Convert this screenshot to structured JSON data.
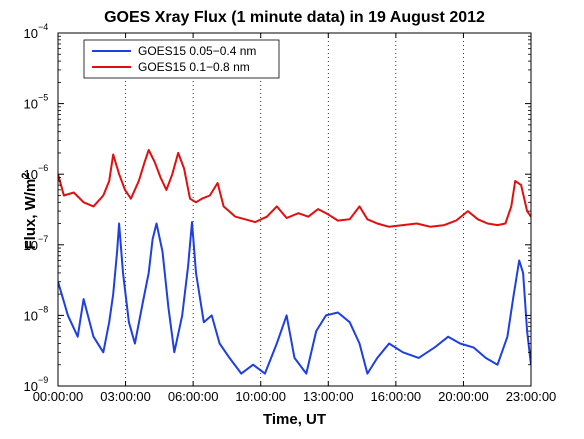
{
  "chart_data": {
    "type": "line",
    "title": "GOES Xray Flux (1 minute data) in 19 August 2012",
    "xlabel": "Time, UT",
    "ylabel_main": "Flux, W/m",
    "ylabel_sup": "2",
    "y_scale": "log",
    "ylim": [
      1e-09,
      0.0001
    ],
    "y_ticks": [
      {
        "value": 1e-09,
        "base": "10",
        "exp": "−9"
      },
      {
        "value": 1e-08,
        "base": "10",
        "exp": "−8"
      },
      {
        "value": 1e-07,
        "base": "10",
        "exp": "−7"
      },
      {
        "value": 1e-06,
        "base": "10",
        "exp": "−6"
      },
      {
        "value": 1e-05,
        "base": "10",
        "exp": "−5"
      },
      {
        "value": 0.0001,
        "base": "10",
        "exp": "−4"
      }
    ],
    "x_ticks": [
      "00:00:00",
      "03:00:00",
      "06:00:00",
      "10:00:00",
      "13:00:00",
      "16:00:00",
      "20:00:00",
      "23:00:00"
    ],
    "vertical_grid": "dotted",
    "legend_position": "top-left",
    "series": [
      {
        "name": "GOES15 0.05−0.4 nm",
        "color": "#1f3fe0",
        "points": [
          [
            0.0,
            3e-08
          ],
          [
            0.5,
            1e-08
          ],
          [
            1.0,
            5e-09
          ],
          [
            1.3,
            1.7e-08
          ],
          [
            1.8,
            5e-09
          ],
          [
            2.3,
            3e-09
          ],
          [
            2.6,
            8e-09
          ],
          [
            2.8,
            2e-08
          ],
          [
            3.0,
            8e-08
          ],
          [
            3.1,
            2e-07
          ],
          [
            3.3,
            4e-08
          ],
          [
            3.6,
            8e-09
          ],
          [
            3.9,
            4e-09
          ],
          [
            4.3,
            1.5e-08
          ],
          [
            4.6,
            4e-08
          ],
          [
            4.8,
            1.2e-07
          ],
          [
            5.0,
            2e-07
          ],
          [
            5.3,
            8e-08
          ],
          [
            5.6,
            1.3e-08
          ],
          [
            5.9,
            3e-09
          ],
          [
            6.3,
            1e-08
          ],
          [
            6.6,
            5e-08
          ],
          [
            6.8,
            2.1e-07
          ],
          [
            7.0,
            4e-08
          ],
          [
            7.4,
            8e-09
          ],
          [
            7.8,
            1e-08
          ],
          [
            8.2,
            4e-09
          ],
          [
            8.7,
            2.5e-09
          ],
          [
            9.3,
            1.5e-09
          ],
          [
            9.9,
            2e-09
          ],
          [
            10.5,
            1.5e-09
          ],
          [
            11.1,
            4e-09
          ],
          [
            11.6,
            1e-08
          ],
          [
            12.0,
            2.5e-09
          ],
          [
            12.6,
            1.5e-09
          ],
          [
            13.1,
            6e-09
          ],
          [
            13.6,
            1e-08
          ],
          [
            14.2,
            1.1e-08
          ],
          [
            14.8,
            8e-09
          ],
          [
            15.3,
            4e-09
          ],
          [
            15.7,
            1.5e-09
          ],
          [
            16.2,
            2.5e-09
          ],
          [
            16.8,
            4e-09
          ],
          [
            17.5,
            3e-09
          ],
          [
            18.3,
            2.5e-09
          ],
          [
            19.1,
            3.5e-09
          ],
          [
            19.8,
            5e-09
          ],
          [
            20.4,
            4e-09
          ],
          [
            21.1,
            3.5e-09
          ],
          [
            21.7,
            2.5e-09
          ],
          [
            22.3,
            2e-09
          ],
          [
            22.8,
            5e-09
          ],
          [
            23.1,
            1.8e-08
          ],
          [
            23.4,
            6e-08
          ],
          [
            23.6,
            4e-08
          ],
          [
            23.8,
            6e-09
          ],
          [
            24.0,
            2e-09
          ]
        ]
      },
      {
        "name": "GOES15 0.1−0.8 nm",
        "color": "#e01010",
        "points": [
          [
            0.0,
            1e-06
          ],
          [
            0.3,
            5e-07
          ],
          [
            0.8,
            5.5e-07
          ],
          [
            1.3,
            4e-07
          ],
          [
            1.8,
            3.5e-07
          ],
          [
            2.3,
            5e-07
          ],
          [
            2.6,
            8e-07
          ],
          [
            2.8,
            1.9e-06
          ],
          [
            3.1,
            1e-06
          ],
          [
            3.4,
            6e-07
          ],
          [
            3.7,
            4.5e-07
          ],
          [
            4.1,
            8e-07
          ],
          [
            4.4,
            1.5e-06
          ],
          [
            4.6,
            2.2e-06
          ],
          [
            4.9,
            1.5e-06
          ],
          [
            5.2,
            9e-07
          ],
          [
            5.5,
            6e-07
          ],
          [
            5.8,
            1e-06
          ],
          [
            6.1,
            2e-06
          ],
          [
            6.4,
            1.2e-06
          ],
          [
            6.7,
            4.5e-07
          ],
          [
            7.0,
            4e-07
          ],
          [
            7.3,
            4.5e-07
          ],
          [
            7.7,
            5e-07
          ],
          [
            8.1,
            7.5e-07
          ],
          [
            8.4,
            3.5e-07
          ],
          [
            9.0,
            2.5e-07
          ],
          [
            9.5,
            2.3e-07
          ],
          [
            10.0,
            2.1e-07
          ],
          [
            10.6,
            2.5e-07
          ],
          [
            11.1,
            3.5e-07
          ],
          [
            11.6,
            2.4e-07
          ],
          [
            12.2,
            2.8e-07
          ],
          [
            12.7,
            2.5e-07
          ],
          [
            13.2,
            3.2e-07
          ],
          [
            13.7,
            2.7e-07
          ],
          [
            14.2,
            2.2e-07
          ],
          [
            14.8,
            2.3e-07
          ],
          [
            15.3,
            3.5e-07
          ],
          [
            15.7,
            2.3e-07
          ],
          [
            16.2,
            2e-07
          ],
          [
            16.8,
            1.8e-07
          ],
          [
            17.5,
            1.9e-07
          ],
          [
            18.2,
            2e-07
          ],
          [
            18.9,
            1.8e-07
          ],
          [
            19.6,
            1.9e-07
          ],
          [
            20.2,
            2.2e-07
          ],
          [
            20.8,
            3e-07
          ],
          [
            21.3,
            2.3e-07
          ],
          [
            21.8,
            2e-07
          ],
          [
            22.3,
            1.9e-07
          ],
          [
            22.7,
            2e-07
          ],
          [
            23.0,
            3.5e-07
          ],
          [
            23.2,
            8e-07
          ],
          [
            23.5,
            7e-07
          ],
          [
            23.8,
            3e-07
          ],
          [
            24.0,
            2.5e-07
          ]
        ]
      }
    ]
  }
}
